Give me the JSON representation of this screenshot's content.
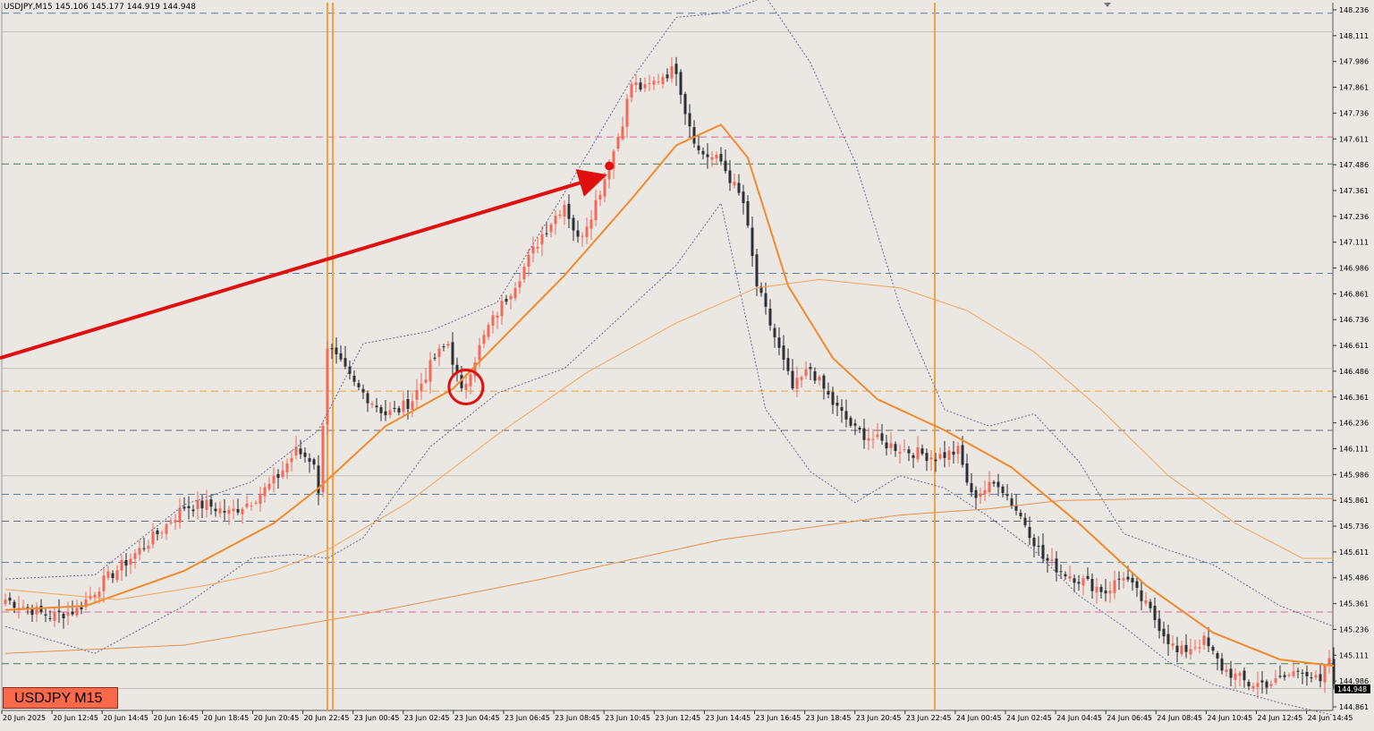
{
  "header": {
    "title": "USDJPY,M15  145.106 145.177 144.919 144.948"
  },
  "symbol_badge": "USDJPY M15",
  "colors": {
    "background": "#ebe7e3",
    "bull": "#f26a5a",
    "bear": "#2b2f36",
    "ma_fast": "#f28a2c",
    "ma_mid": "#f6a45a",
    "ma_slow": "#e8914a",
    "bands": "#6a6a90",
    "arrow": "#e01010",
    "vline": "#f5a040"
  },
  "chart_data": {
    "type": "candlestick",
    "symbol": "USDJPY",
    "timeframe": "M15",
    "ylim": [
      144.86,
      148.28
    ],
    "y_ticks": [
      148.236,
      148.111,
      147.986,
      147.861,
      147.736,
      147.611,
      147.486,
      147.361,
      147.236,
      147.111,
      146.986,
      146.861,
      146.736,
      146.611,
      146.486,
      146.361,
      146.236,
      146.111,
      145.986,
      145.861,
      145.736,
      145.611,
      145.486,
      145.361,
      145.236,
      145.111,
      144.986,
      144.861
    ],
    "current_price": "144.948",
    "x_ticks": [
      "20 Jun 2025",
      "20 Jun 12:45",
      "20 Jun 14:45",
      "20 Jun 16:45",
      "20 Jun 18:45",
      "20 Jun 20:45",
      "20 Jun 22:45",
      "23 Jun 00:45",
      "23 Jun 02:45",
      "23 Jun 04:45",
      "23 Jun 06:45",
      "23 Jun 08:45",
      "23 Jun 10:45",
      "23 Jun 12:45",
      "23 Jun 14:45",
      "23 Jun 16:45",
      "23 Jun 18:45",
      "23 Jun 20:45",
      "23 Jun 22:45",
      "24 Jun 00:45",
      "24 Jun 02:45",
      "24 Jun 04:45",
      "24 Jun 06:45",
      "24 Jun 08:45",
      "24 Jun 10:45",
      "24 Jun 12:45",
      "24 Jun 14:45"
    ],
    "horizontal_levels": [
      {
        "price": 148.22,
        "color": "#5b7fa8"
      },
      {
        "price": 147.62,
        "color": "#e8609a"
      },
      {
        "price": 147.49,
        "color": "#3f7a5a"
      },
      {
        "price": 146.96,
        "color": "#5b7fa8"
      },
      {
        "price": 146.39,
        "color": "#f5a040"
      },
      {
        "price": 146.2,
        "color": "#6a6a7a"
      },
      {
        "price": 145.89,
        "color": "#5b7fa8"
      },
      {
        "price": 145.76,
        "color": "#6a6a7a"
      },
      {
        "price": 145.56,
        "color": "#5b7fa8"
      },
      {
        "price": 145.32,
        "color": "#e8609a"
      },
      {
        "price": 145.07,
        "color": "#3f7a5a"
      }
    ],
    "grey_levels": [
      148.13,
      146.5,
      145.98,
      144.95
    ],
    "vertical_markers": [
      "20 Jun 22:45",
      "23 Jun 22:45"
    ],
    "annotation": {
      "circle_at": {
        "time": "23 Jun 04:45",
        "price": 146.41
      },
      "arrow_from": {
        "time": "23 Jun 05:00",
        "price": 146.55
      },
      "arrow_to": {
        "time": "23 Jun 10:45",
        "price": 147.48
      }
    },
    "anchors": [
      [
        0,
        145.38
      ],
      [
        10,
        145.3
      ],
      [
        16,
        145.33
      ],
      [
        22,
        145.47
      ],
      [
        30,
        145.62
      ],
      [
        35,
        145.72
      ],
      [
        40,
        145.83
      ],
      [
        45,
        145.84
      ],
      [
        50,
        145.8
      ],
      [
        55,
        145.86
      ],
      [
        60,
        145.95
      ],
      [
        65,
        146.1
      ],
      [
        69,
        146.05
      ],
      [
        70,
        145.88
      ],
      [
        72,
        146.61
      ],
      [
        78,
        146.42
      ],
      [
        85,
        146.28
      ],
      [
        88,
        146.3
      ],
      [
        91,
        146.35
      ],
      [
        96,
        146.55
      ],
      [
        99,
        146.62
      ],
      [
        102,
        146.38
      ],
      [
        104,
        146.5
      ],
      [
        108,
        146.7
      ],
      [
        115,
        146.95
      ],
      [
        120,
        147.15
      ],
      [
        125,
        147.3
      ],
      [
        128,
        147.12
      ],
      [
        131,
        147.25
      ],
      [
        135,
        147.48
      ],
      [
        138,
        147.7
      ],
      [
        140,
        147.88
      ],
      [
        143,
        147.85
      ],
      [
        147,
        147.92
      ],
      [
        150,
        147.95
      ],
      [
        152,
        147.75
      ],
      [
        155,
        147.55
      ],
      [
        160,
        147.5
      ],
      [
        165,
        147.3
      ],
      [
        168,
        146.9
      ],
      [
        172,
        146.65
      ],
      [
        176,
        146.4
      ],
      [
        180,
        146.5
      ],
      [
        185,
        146.33
      ],
      [
        190,
        146.2
      ],
      [
        196,
        146.14
      ],
      [
        202,
        146.1
      ],
      [
        208,
        146.07
      ],
      [
        213,
        146.1
      ],
      [
        216,
        145.88
      ],
      [
        222,
        145.95
      ],
      [
        228,
        145.75
      ],
      [
        232,
        145.58
      ],
      [
        236,
        145.52
      ],
      [
        240,
        145.48
      ],
      [
        246,
        145.42
      ],
      [
        250,
        145.5
      ],
      [
        256,
        145.32
      ],
      [
        262,
        145.12
      ],
      [
        268,
        145.18
      ],
      [
        272,
        145.05
      ],
      [
        278,
        144.97
      ],
      [
        284,
        144.98
      ],
      [
        290,
        145.05
      ],
      [
        294,
        144.97
      ],
      [
        296,
        145.1
      ],
      [
        297,
        144.95
      ]
    ],
    "moving_averages": [
      {
        "name": "ma_fast",
        "points": [
          [
            0,
            145.33
          ],
          [
            18,
            145.35
          ],
          [
            40,
            145.52
          ],
          [
            60,
            145.75
          ],
          [
            70,
            145.92
          ],
          [
            85,
            146.22
          ],
          [
            100,
            146.4
          ],
          [
            110,
            146.62
          ],
          [
            125,
            146.95
          ],
          [
            140,
            147.32
          ],
          [
            150,
            147.58
          ],
          [
            160,
            147.68
          ],
          [
            166,
            147.52
          ],
          [
            175,
            146.9
          ],
          [
            185,
            146.55
          ],
          [
            195,
            146.35
          ],
          [
            210,
            146.2
          ],
          [
            225,
            146.02
          ],
          [
            240,
            145.75
          ],
          [
            255,
            145.45
          ],
          [
            270,
            145.22
          ],
          [
            285,
            145.09
          ],
          [
            297,
            145.06
          ]
        ]
      },
      {
        "name": "ma_mid",
        "points": [
          [
            0,
            145.43
          ],
          [
            25,
            145.38
          ],
          [
            45,
            145.45
          ],
          [
            60,
            145.52
          ],
          [
            72,
            145.62
          ],
          [
            90,
            145.85
          ],
          [
            110,
            146.18
          ],
          [
            130,
            146.48
          ],
          [
            150,
            146.72
          ],
          [
            168,
            146.89
          ],
          [
            182,
            146.93
          ],
          [
            200,
            146.89
          ],
          [
            215,
            146.78
          ],
          [
            230,
            146.58
          ],
          [
            245,
            146.3
          ],
          [
            260,
            145.98
          ],
          [
            275,
            145.75
          ],
          [
            290,
            145.58
          ],
          [
            297,
            145.58
          ]
        ]
      },
      {
        "name": "ma_slow",
        "points": [
          [
            0,
            145.12
          ],
          [
            40,
            145.16
          ],
          [
            80,
            145.31
          ],
          [
            120,
            145.48
          ],
          [
            160,
            145.67
          ],
          [
            200,
            145.79
          ],
          [
            220,
            145.82
          ],
          [
            236,
            145.86
          ],
          [
            260,
            145.87
          ],
          [
            297,
            145.87
          ]
        ]
      }
    ],
    "bands": {
      "upper": [
        [
          0,
          145.48
        ],
        [
          20,
          145.5
        ],
        [
          40,
          145.84
        ],
        [
          55,
          145.95
        ],
        [
          70,
          146.2
        ],
        [
          80,
          146.62
        ],
        [
          95,
          146.68
        ],
        [
          110,
          146.82
        ],
        [
          125,
          147.35
        ],
        [
          140,
          147.9
        ],
        [
          150,
          148.2
        ],
        [
          160,
          148.22
        ],
        [
          170,
          148.3
        ],
        [
          180,
          147.98
        ],
        [
          190,
          147.5
        ],
        [
          200,
          146.8
        ],
        [
          210,
          146.3
        ],
        [
          220,
          146.22
        ],
        [
          230,
          146.28
        ],
        [
          240,
          146.05
        ],
        [
          250,
          145.7
        ],
        [
          260,
          145.62
        ],
        [
          270,
          145.55
        ],
        [
          285,
          145.35
        ],
        [
          297,
          145.25
        ]
      ],
      "lower": [
        [
          0,
          145.25
        ],
        [
          20,
          145.12
        ],
        [
          40,
          145.35
        ],
        [
          55,
          145.58
        ],
        [
          65,
          145.6
        ],
        [
          72,
          145.58
        ],
        [
          80,
          145.68
        ],
        [
          95,
          146.12
        ],
        [
          110,
          146.38
        ],
        [
          125,
          146.5
        ],
        [
          140,
          146.8
        ],
        [
          150,
          147.0
        ],
        [
          160,
          147.3
        ],
        [
          170,
          146.3
        ],
        [
          180,
          146.0
        ],
        [
          190,
          145.85
        ],
        [
          200,
          145.98
        ],
        [
          210,
          145.92
        ],
        [
          220,
          145.78
        ],
        [
          230,
          145.62
        ],
        [
          240,
          145.4
        ],
        [
          250,
          145.25
        ],
        [
          260,
          145.08
        ],
        [
          270,
          144.97
        ],
        [
          285,
          144.88
        ],
        [
          297,
          144.82
        ]
      ]
    }
  }
}
